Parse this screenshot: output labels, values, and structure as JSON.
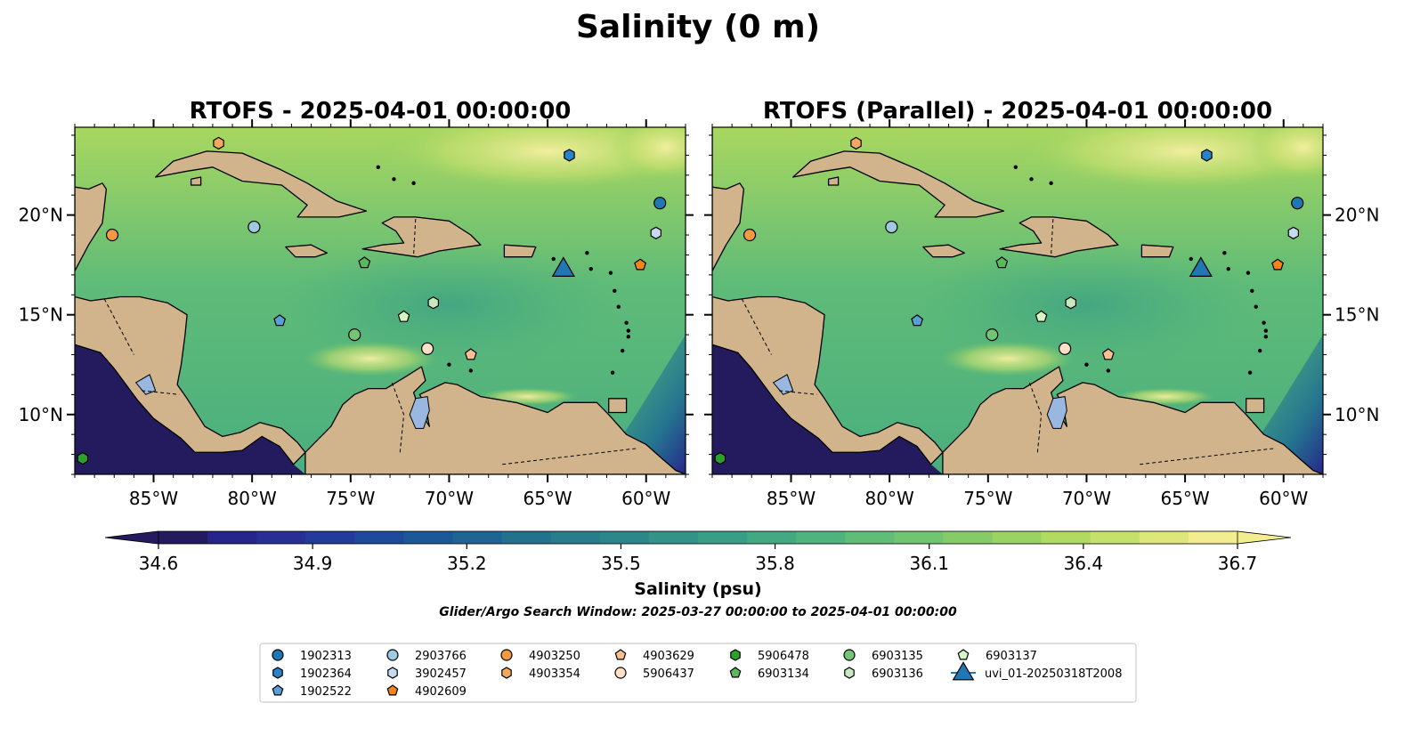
{
  "figure": {
    "suptitle": "Salinity (0 m)",
    "search_window": "Glider/Argo Search Window: 2025-03-27 00:00:00 to 2025-04-01 00:00:00"
  },
  "chart_data": [
    {
      "type": "map",
      "title": "RTOFS - 2025-04-01 00:00:00",
      "xlim": [
        -89,
        -58
      ],
      "ylim": [
        7,
        24.4
      ],
      "x_ticks": [
        -85,
        -80,
        -75,
        -70,
        -65,
        -60
      ],
      "x_tick_labels": [
        "85°W",
        "80°W",
        "75°W",
        "70°W",
        "65°W",
        "60°W"
      ],
      "y_ticks": [
        10,
        15,
        20
      ],
      "y_tick_labels": [
        "10°N",
        "15°N",
        "20°N"
      ],
      "y_label_side": "left",
      "field": "sea surface salinity (filled contours)"
    },
    {
      "type": "map",
      "title": "RTOFS (Parallel) - 2025-04-01 00:00:00",
      "xlim": [
        -89,
        -58
      ],
      "ylim": [
        7,
        24.4
      ],
      "x_ticks": [
        -85,
        -80,
        -75,
        -70,
        -65,
        -60
      ],
      "x_tick_labels": [
        "85°W",
        "80°W",
        "75°W",
        "70°W",
        "65°W",
        "60°W"
      ],
      "y_ticks": [
        10,
        15,
        20
      ],
      "y_tick_labels": [
        "10°N",
        "15°N",
        "20°N"
      ],
      "y_label_side": "right",
      "field": "sea surface salinity (filled contours)"
    }
  ],
  "colorbar": {
    "label": "Salinity (psu)",
    "min": 34.6,
    "max": 36.7,
    "ticks": [
      34.6,
      34.9,
      35.2,
      35.5,
      35.8,
      36.1,
      36.4,
      36.7
    ],
    "tick_labels": [
      "34.6",
      "34.9",
      "35.2",
      "35.5",
      "35.8",
      "36.1",
      "36.4",
      "36.7"
    ],
    "extend": "both",
    "colors": [
      "#241b5e",
      "#26268a",
      "#272f94",
      "#233c99",
      "#1f4a9b",
      "#1c5898",
      "#1e6593",
      "#22718f",
      "#277c8d",
      "#2c878b",
      "#329388",
      "#389e85",
      "#42a982",
      "#4fb37e",
      "#5fbd78",
      "#71c570",
      "#85cc68",
      "#9ad362",
      "#b0da62",
      "#c6e06c",
      "#dde77c",
      "#f2ed8e"
    ]
  },
  "legend": {
    "placement": "lower center",
    "entries": [
      {
        "label": "1902313",
        "marker": "circle",
        "color": "#1f77b4",
        "lon": -59.3,
        "lat": 20.6
      },
      {
        "label": "1902364",
        "marker": "hexagon",
        "color": "#2a82c9",
        "lon": -63.9,
        "lat": 23.0
      },
      {
        "label": "1902522",
        "marker": "pentagon",
        "color": "#5aa0d8",
        "lon": -78.6,
        "lat": 14.7
      },
      {
        "label": "2903766",
        "marker": "circle",
        "color": "#9ecae1",
        "lon": -79.9,
        "lat": 19.4
      },
      {
        "label": "3902457",
        "marker": "hexagon",
        "color": "#c6dbef",
        "lon": -59.5,
        "lat": 19.1
      },
      {
        "label": "4902609",
        "marker": "pentagon",
        "color": "#f58518",
        "lon": -60.3,
        "lat": 17.5
      },
      {
        "label": "4903250",
        "marker": "circle",
        "color": "#f39a3e",
        "lon": -87.1,
        "lat": 19.0
      },
      {
        "label": "4903354",
        "marker": "hexagon",
        "color": "#f4a85e",
        "lon": -81.7,
        "lat": 23.6
      },
      {
        "label": "4903629",
        "marker": "pentagon",
        "color": "#fac08f",
        "lon": -68.9,
        "lat": 13.0
      },
      {
        "label": "5906437",
        "marker": "circle",
        "color": "#fde0c5",
        "lon": -71.1,
        "lat": 13.3
      },
      {
        "label": "5906478",
        "marker": "hexagon",
        "color": "#2ca02c",
        "lon": -88.6,
        "lat": 7.8
      },
      {
        "label": "6903134",
        "marker": "pentagon",
        "color": "#5cb85c",
        "lon": -74.3,
        "lat": 17.6
      },
      {
        "label": "6903135",
        "marker": "circle",
        "color": "#74c476",
        "lon": -74.8,
        "lat": 14.0
      },
      {
        "label": "6903136",
        "marker": "hexagon",
        "color": "#c7e9c0",
        "lon": -70.8,
        "lat": 15.6
      },
      {
        "label": "6903137",
        "marker": "pentagon",
        "color": "#d9f7c4",
        "lon": -72.3,
        "lat": 14.9
      },
      {
        "label": "uvi_01-20250318T2008",
        "marker": "triangle",
        "color": "#1f77b4",
        "lon": -64.2,
        "lat": 17.4
      }
    ]
  }
}
